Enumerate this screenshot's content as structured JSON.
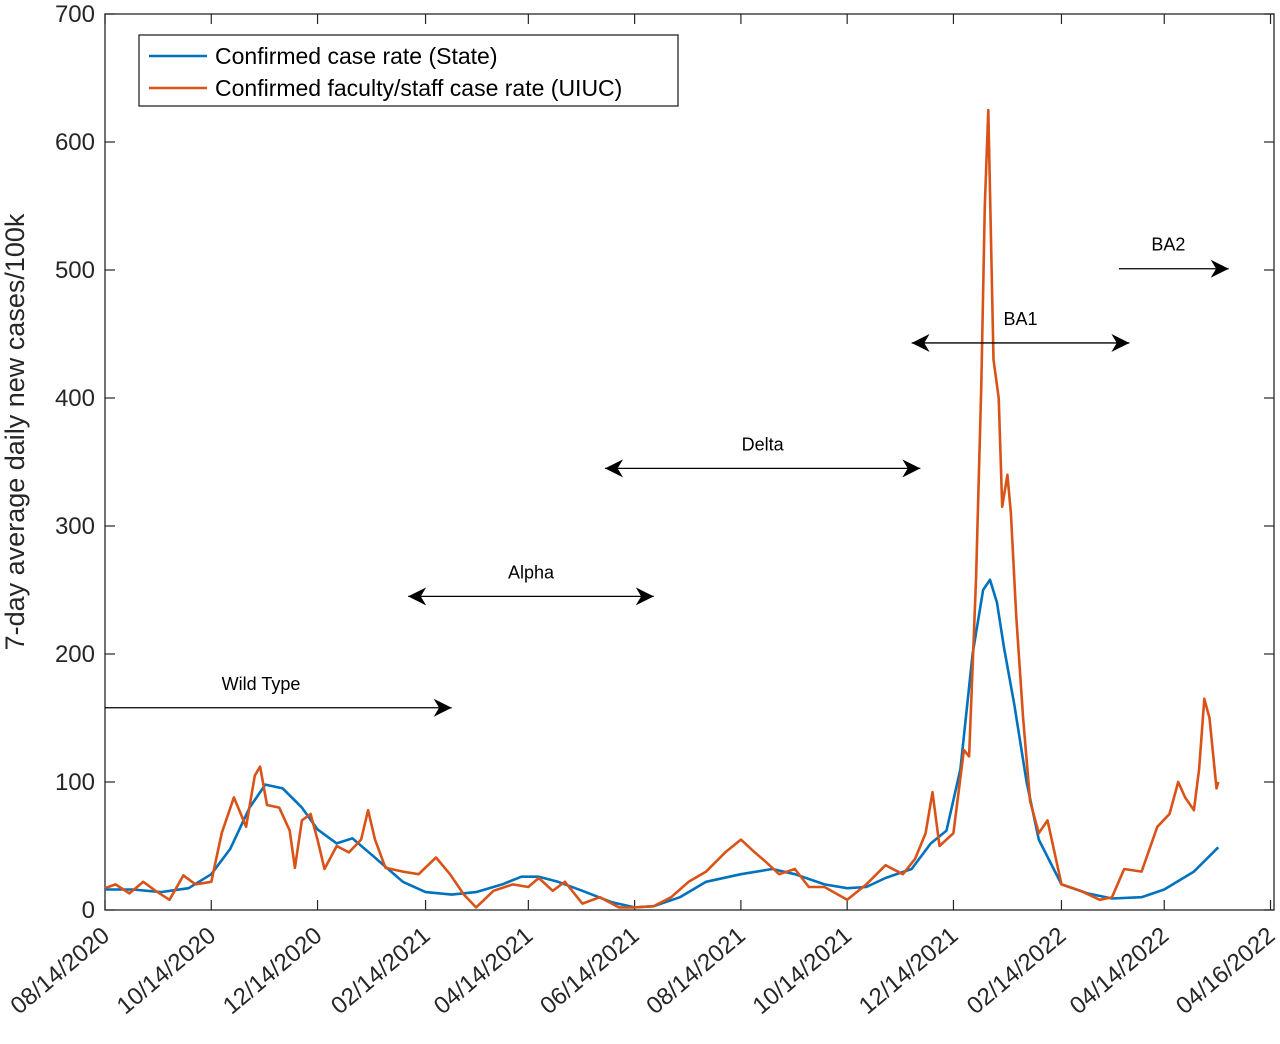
{
  "chart_data": {
    "type": "line",
    "title": "",
    "xlabel": "",
    "ylabel": "7-day average daily new cases/100k",
    "ylim": [
      0,
      700
    ],
    "xlim": [
      "2020-08-14",
      "2022-06-16"
    ],
    "yticks": [
      0,
      100,
      200,
      300,
      400,
      500,
      600,
      700
    ],
    "xtick_labels": [
      "08/14/2020",
      "10/14/2020",
      "12/14/2020",
      "02/14/2021",
      "04/14/2021",
      "06/14/2021",
      "08/14/2021",
      "10/14/2021",
      "12/14/2021",
      "02/14/2022",
      "04/14/2022",
      "04/16/2022"
    ],
    "grid": false,
    "legend_position": "top-left",
    "series": [
      {
        "name": "Confirmed case rate (State)",
        "color": "#0072BD",
        "points": [
          [
            "2020-08-14",
            16
          ],
          [
            "2020-08-30",
            16
          ],
          [
            "2020-09-15",
            14
          ],
          [
            "2020-10-01",
            17
          ],
          [
            "2020-10-14",
            28
          ],
          [
            "2020-10-25",
            48
          ],
          [
            "2020-11-05",
            80
          ],
          [
            "2020-11-14",
            98
          ],
          [
            "2020-11-24",
            95
          ],
          [
            "2020-12-05",
            80
          ],
          [
            "2020-12-14",
            63
          ],
          [
            "2020-12-25",
            52
          ],
          [
            "2021-01-03",
            56
          ],
          [
            "2021-01-15",
            42
          ],
          [
            "2021-02-01",
            22
          ],
          [
            "2021-02-14",
            14
          ],
          [
            "2021-03-01",
            12
          ],
          [
            "2021-03-15",
            14
          ],
          [
            "2021-03-30",
            20
          ],
          [
            "2021-04-10",
            26
          ],
          [
            "2021-04-20",
            26
          ],
          [
            "2021-05-01",
            22
          ],
          [
            "2021-05-15",
            15
          ],
          [
            "2021-06-01",
            6
          ],
          [
            "2021-06-14",
            2
          ],
          [
            "2021-06-25",
            3
          ],
          [
            "2021-07-10",
            10
          ],
          [
            "2021-07-25",
            22
          ],
          [
            "2021-08-14",
            28
          ],
          [
            "2021-09-01",
            32
          ],
          [
            "2021-09-14",
            28
          ],
          [
            "2021-10-01",
            20
          ],
          [
            "2021-10-14",
            17
          ],
          [
            "2021-10-25",
            18
          ],
          [
            "2021-11-05",
            25
          ],
          [
            "2021-11-20",
            32
          ],
          [
            "2021-12-01",
            52
          ],
          [
            "2021-12-10",
            62
          ],
          [
            "2021-12-18",
            110
          ],
          [
            "2021-12-25",
            200
          ],
          [
            "2021-12-31",
            250
          ],
          [
            "2022-01-04",
            258
          ],
          [
            "2022-01-08",
            240
          ],
          [
            "2022-01-12",
            205
          ],
          [
            "2022-01-18",
            160
          ],
          [
            "2022-01-25",
            100
          ],
          [
            "2022-02-01",
            55
          ],
          [
            "2022-02-14",
            20
          ],
          [
            "2022-03-01",
            13
          ],
          [
            "2022-03-15",
            9
          ],
          [
            "2022-04-01",
            10
          ],
          [
            "2022-04-14",
            16
          ],
          [
            "2022-05-01",
            30
          ],
          [
            "2022-05-15",
            49
          ]
        ]
      },
      {
        "name": "Confirmed faculty/staff case rate (UIUC)",
        "color": "#D95319",
        "points": [
          [
            "2020-08-14",
            17
          ],
          [
            "2020-08-20",
            20
          ],
          [
            "2020-08-28",
            13
          ],
          [
            "2020-09-05",
            22
          ],
          [
            "2020-09-12",
            15
          ],
          [
            "2020-09-20",
            8
          ],
          [
            "2020-09-28",
            27
          ],
          [
            "2020-10-05",
            20
          ],
          [
            "2020-10-14",
            22
          ],
          [
            "2020-10-20",
            60
          ],
          [
            "2020-10-27",
            88
          ],
          [
            "2020-11-03",
            65
          ],
          [
            "2020-11-08",
            105
          ],
          [
            "2020-11-11",
            112
          ],
          [
            "2020-11-15",
            82
          ],
          [
            "2020-11-22",
            80
          ],
          [
            "2020-11-28",
            62
          ],
          [
            "2020-12-01",
            33
          ],
          [
            "2020-12-05",
            70
          ],
          [
            "2020-12-10",
            75
          ],
          [
            "2020-12-14",
            55
          ],
          [
            "2020-12-18",
            32
          ],
          [
            "2020-12-25",
            50
          ],
          [
            "2021-01-01",
            45
          ],
          [
            "2021-01-08",
            55
          ],
          [
            "2021-01-12",
            78
          ],
          [
            "2021-01-16",
            55
          ],
          [
            "2021-01-22",
            33
          ],
          [
            "2021-02-01",
            30
          ],
          [
            "2021-02-10",
            28
          ],
          [
            "2021-02-20",
            41
          ],
          [
            "2021-02-28",
            28
          ],
          [
            "2021-03-08",
            12
          ],
          [
            "2021-03-15",
            2
          ],
          [
            "2021-03-25",
            15
          ],
          [
            "2021-04-05",
            20
          ],
          [
            "2021-04-14",
            18
          ],
          [
            "2021-04-20",
            25
          ],
          [
            "2021-04-28",
            15
          ],
          [
            "2021-05-05",
            22
          ],
          [
            "2021-05-15",
            5
          ],
          [
            "2021-05-25",
            10
          ],
          [
            "2021-06-05",
            2
          ],
          [
            "2021-06-14",
            2
          ],
          [
            "2021-06-25",
            3
          ],
          [
            "2021-07-05",
            10
          ],
          [
            "2021-07-15",
            22
          ],
          [
            "2021-07-25",
            30
          ],
          [
            "2021-08-05",
            45
          ],
          [
            "2021-08-14",
            55
          ],
          [
            "2021-08-22",
            45
          ],
          [
            "2021-08-28",
            38
          ],
          [
            "2021-09-05",
            28
          ],
          [
            "2021-09-14",
            32
          ],
          [
            "2021-09-22",
            18
          ],
          [
            "2021-10-01",
            18
          ],
          [
            "2021-10-14",
            8
          ],
          [
            "2021-10-25",
            20
          ],
          [
            "2021-11-05",
            35
          ],
          [
            "2021-11-15",
            28
          ],
          [
            "2021-11-22",
            40
          ],
          [
            "2021-11-28",
            60
          ],
          [
            "2021-12-02",
            92
          ],
          [
            "2021-12-06",
            50
          ],
          [
            "2021-12-14",
            60
          ],
          [
            "2021-12-20",
            125
          ],
          [
            "2021-12-23",
            120
          ],
          [
            "2021-12-27",
            260
          ],
          [
            "2021-12-30",
            410
          ],
          [
            "2022-01-01",
            550
          ],
          [
            "2022-01-03",
            625
          ],
          [
            "2022-01-06",
            430
          ],
          [
            "2022-01-09",
            400
          ],
          [
            "2022-01-11",
            315
          ],
          [
            "2022-01-14",
            340
          ],
          [
            "2022-01-16",
            310
          ],
          [
            "2022-01-19",
            230
          ],
          [
            "2022-01-23",
            150
          ],
          [
            "2022-01-27",
            85
          ],
          [
            "2022-02-01",
            60
          ],
          [
            "2022-02-06",
            70
          ],
          [
            "2022-02-14",
            20
          ],
          [
            "2022-02-25",
            15
          ],
          [
            "2022-03-08",
            8
          ],
          [
            "2022-03-15",
            10
          ],
          [
            "2022-03-22",
            32
          ],
          [
            "2022-04-01",
            30
          ],
          [
            "2022-04-10",
            65
          ],
          [
            "2022-04-17",
            75
          ],
          [
            "2022-04-22",
            100
          ],
          [
            "2022-04-26",
            88
          ],
          [
            "2022-05-01",
            78
          ],
          [
            "2022-05-04",
            110
          ],
          [
            "2022-05-07",
            165
          ],
          [
            "2022-05-10",
            150
          ],
          [
            "2022-05-14",
            95
          ],
          [
            "2022-05-15",
            100
          ]
        ]
      }
    ],
    "annotations": [
      {
        "text": "Wild Type",
        "x1": "2020-08-14",
        "y1": 158,
        "x2": "2021-03-01",
        "y2": 158,
        "heads": "end"
      },
      {
        "text": "Alpha",
        "x1": "2021-02-04",
        "y1": 245,
        "x2": "2021-06-25",
        "y2": 245,
        "heads": "both"
      },
      {
        "text": "Delta",
        "x1": "2021-05-28",
        "y1": 345,
        "x2": "2021-11-25",
        "y2": 345,
        "heads": "both"
      },
      {
        "text": "BA1",
        "x1": "2021-11-20",
        "y1": 443,
        "x2": "2022-03-25",
        "y2": 443,
        "heads": "both"
      },
      {
        "text": "BA2",
        "x1": "2022-03-19",
        "y1": 501,
        "x2": "2022-05-21",
        "y2": 501,
        "heads": "end"
      }
    ]
  }
}
